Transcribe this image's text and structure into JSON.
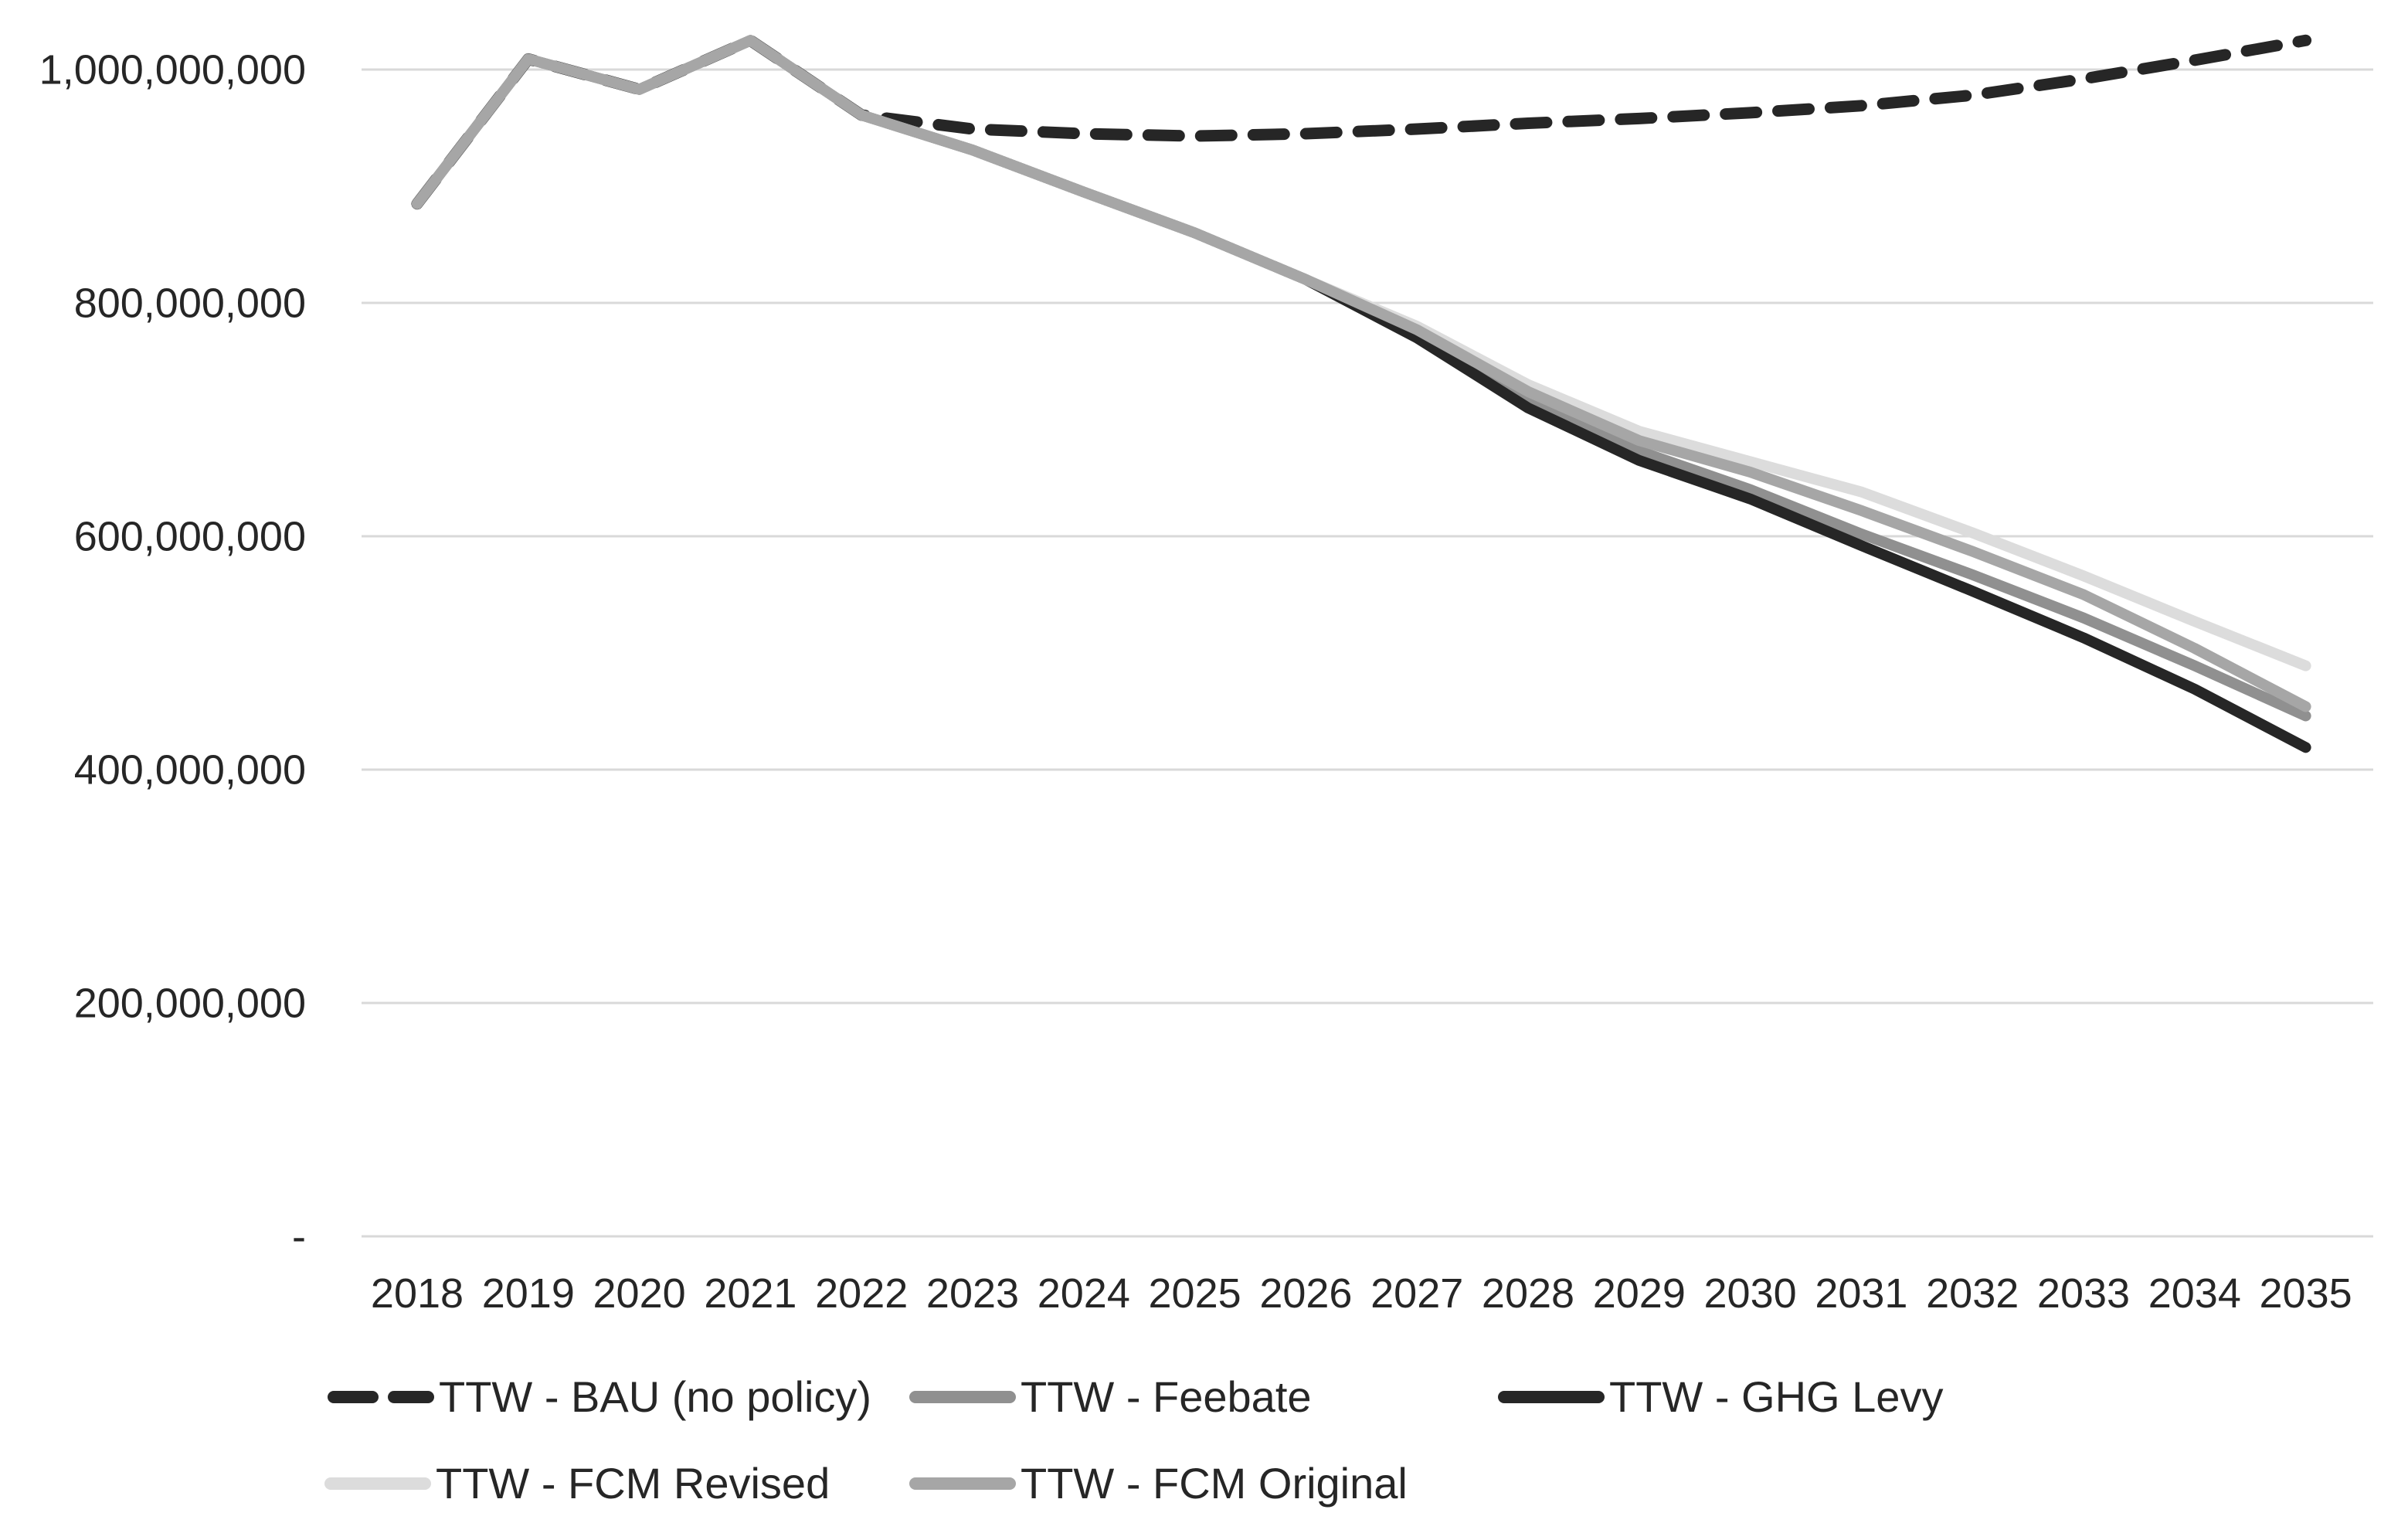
{
  "chart_data": {
    "type": "line",
    "title": "",
    "xlabel": "",
    "ylabel": "",
    "grid": true,
    "legend_position": "bottom",
    "x": [
      2018,
      2019,
      2020,
      2021,
      2022,
      2023,
      2024,
      2025,
      2026,
      2027,
      2028,
      2029,
      2030,
      2031,
      2032,
      2033,
      2034,
      2035
    ],
    "x_tick_labels": [
      "2018",
      "2019",
      "2020",
      "2021",
      "2022",
      "2023",
      "2024",
      "2025",
      "2026",
      "2027",
      "2028",
      "2029",
      "2030",
      "2031",
      "2032",
      "2033",
      "2034",
      "2035"
    ],
    "y_ticks": [
      {
        "value": 0,
        "label": "-"
      },
      {
        "value": 200000000,
        "label": "200,000,000"
      },
      {
        "value": 400000000,
        "label": "400,000,000"
      },
      {
        "value": 600000000,
        "label": "600,000,000"
      },
      {
        "value": 800000000,
        "label": "800,000,000"
      },
      {
        "value": 1000000000,
        "label": "1,000,000,000"
      }
    ],
    "ylim": [
      0,
      1059600000
    ],
    "series": [
      {
        "name": "TTW - BAU (no policy)",
        "color": "#262626",
        "style": "dashed",
        "values": [
          885000000,
          1009000000,
          983000000,
          1025000000,
          961000000,
          949000000,
          945000000,
          943000000,
          945000000,
          949000000,
          954000000,
          958000000,
          963000000,
          969000000,
          978000000,
          992000000,
          1008000000,
          1025000000
        ]
      },
      {
        "name": "TTW - Feebate",
        "color": "#909090",
        "style": "solid",
        "values": [
          885000000,
          1009000000,
          983000000,
          1025000000,
          961000000,
          931000000,
          895000000,
          860000000,
          820000000,
          775000000,
          720000000,
          673000000,
          640000000,
          602000000,
          567000000,
          530000000,
          489000000,
          446000000
        ]
      },
      {
        "name": "TTW - GHG Levy",
        "color": "#262626",
        "style": "solid",
        "values": [
          885000000,
          1009000000,
          983000000,
          1025000000,
          961000000,
          931000000,
          895000000,
          860000000,
          820000000,
          770000000,
          710000000,
          665000000,
          632000000,
          592000000,
          553000000,
          513000000,
          469000000,
          419000000
        ]
      },
      {
        "name": "TTW - FCM Revised",
        "color": "#dcdcdc",
        "style": "solid",
        "values": [
          885000000,
          1009000000,
          983000000,
          1025000000,
          961000000,
          931000000,
          895000000,
          860000000,
          820000000,
          780000000,
          730000000,
          690000000,
          664000000,
          638000000,
          603000000,
          566000000,
          527000000,
          489000000
        ]
      },
      {
        "name": "TTW - FCM Original",
        "color": "#a6a6a6",
        "style": "solid",
        "values": [
          885000000,
          1009000000,
          983000000,
          1025000000,
          961000000,
          931000000,
          895000000,
          860000000,
          820000000,
          777000000,
          724000000,
          682000000,
          655000000,
          622000000,
          587000000,
          550000000,
          504000000,
          454000000
        ]
      }
    ],
    "legend_rows": [
      [
        "TTW - BAU (no policy)",
        "TTW - Feebate",
        "TTW - GHG Levy"
      ],
      [
        "TTW - FCM Revised",
        "TTW - FCM Original"
      ]
    ],
    "colors": {
      "gridline": "#d9d9d9",
      "axis_text": "#262626",
      "background": "#ffffff"
    }
  }
}
